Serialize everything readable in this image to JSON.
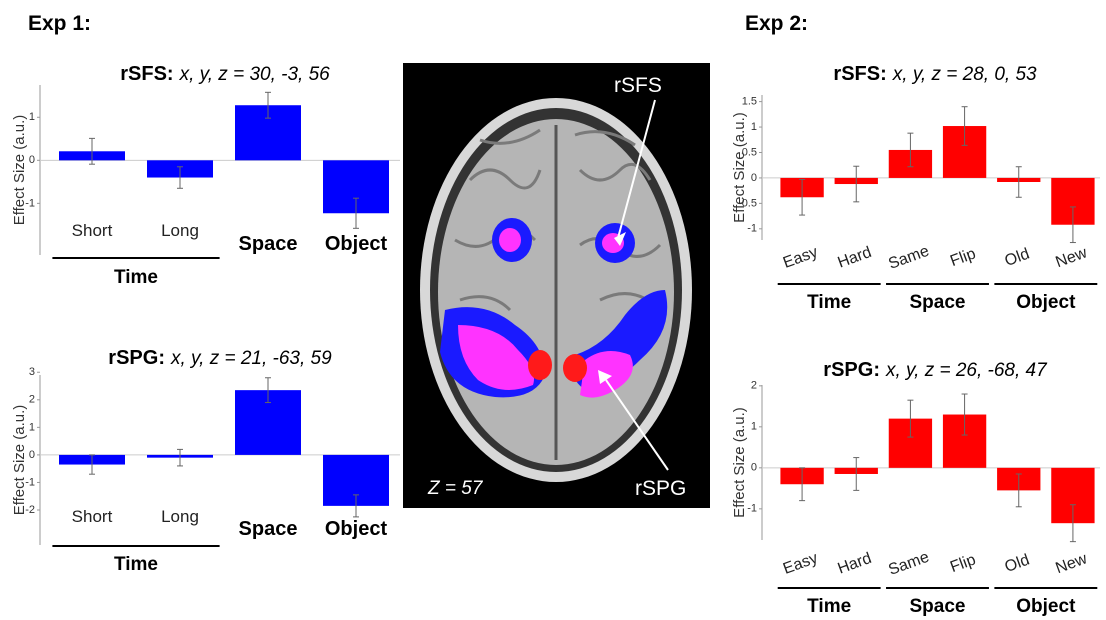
{
  "headers": [
    "Exp 1:",
    "Exp 2:"
  ],
  "brain": {
    "labels": [
      "rSFS",
      "rSPG"
    ],
    "slice": "Z = 57"
  },
  "chart_data": [
    {
      "type": "bar",
      "title": "rSFS:",
      "subtitle": "x, y, z =  30, -3, 56",
      "y_label": "Effect Size (a.u.)",
      "categories": [
        "Short",
        "Long",
        "Space",
        "Object"
      ],
      "groups": [
        {
          "name": "Time",
          "categories": [
            0,
            1
          ]
        }
      ],
      "values": [
        0.21,
        -0.4,
        1.28,
        -1.23
      ],
      "errors": [
        0.3,
        0.25,
        0.3,
        0.35
      ],
      "color": "#0000ff",
      "ylim": [
        -2.2,
        1.75
      ],
      "yticks": [
        -1,
        0,
        1
      ],
      "rotate_labels": false
    },
    {
      "type": "bar",
      "title": "rSPG:",
      "subtitle": "x, y, z =  21, -63, 59",
      "y_label": "Effect Size (a.u.)",
      "categories": [
        "Short",
        "Long",
        "Space",
        "Object"
      ],
      "groups": [
        {
          "name": "Time",
          "categories": [
            0,
            1
          ]
        }
      ],
      "values": [
        -0.35,
        -0.1,
        2.35,
        -1.85
      ],
      "errors": [
        0.35,
        0.3,
        0.45,
        0.4
      ],
      "color": "#0000ff",
      "ylim": [
        -3.27,
        2.9
      ],
      "yticks": [
        -2,
        -1,
        0,
        1,
        2,
        3
      ],
      "rotate_labels": false
    },
    {
      "type": "bar",
      "title": "rSFS:",
      "subtitle": "x, y, z = 28, 0, 53",
      "y_label": "Effect Size (a.u.)",
      "categories": [
        "Easy",
        "Hard",
        "Same",
        "Flip",
        "Old",
        "New"
      ],
      "groups": [
        {
          "name": "Time",
          "categories": [
            0,
            1
          ]
        },
        {
          "name": "Space",
          "categories": [
            2,
            3
          ]
        },
        {
          "name": "Object",
          "categories": [
            4,
            5
          ]
        }
      ],
      "values": [
        -0.38,
        -0.12,
        0.55,
        1.02,
        -0.08,
        -0.92
      ],
      "errors": [
        0.35,
        0.35,
        0.33,
        0.38,
        0.3,
        0.35
      ],
      "color": "#ff0000",
      "ylim": [
        -1.22,
        1.63
      ],
      "yticks": [
        -1,
        -0.5,
        0,
        0.5,
        1,
        1.5
      ],
      "rotate_labels": true
    },
    {
      "type": "bar",
      "title": "rSPG:",
      "subtitle": "x, y, z =  26, -68, 47",
      "y_label": "Effect Size (a.u.)",
      "categories": [
        "Easy",
        "Hard",
        "Same",
        "Flip",
        "Old",
        "New"
      ],
      "groups": [
        {
          "name": "Time",
          "categories": [
            0,
            1
          ]
        },
        {
          "name": "Space",
          "categories": [
            2,
            3
          ]
        },
        {
          "name": "Object",
          "categories": [
            4,
            5
          ]
        }
      ],
      "values": [
        -0.4,
        -0.15,
        1.2,
        1.3,
        -0.55,
        -1.35
      ],
      "errors": [
        0.4,
        0.4,
        0.45,
        0.5,
        0.4,
        0.45
      ],
      "color": "#ff0000",
      "ylim": [
        -1.76,
        2.02
      ],
      "yticks": [
        -1,
        0,
        1,
        2
      ],
      "rotate_labels": true
    }
  ]
}
